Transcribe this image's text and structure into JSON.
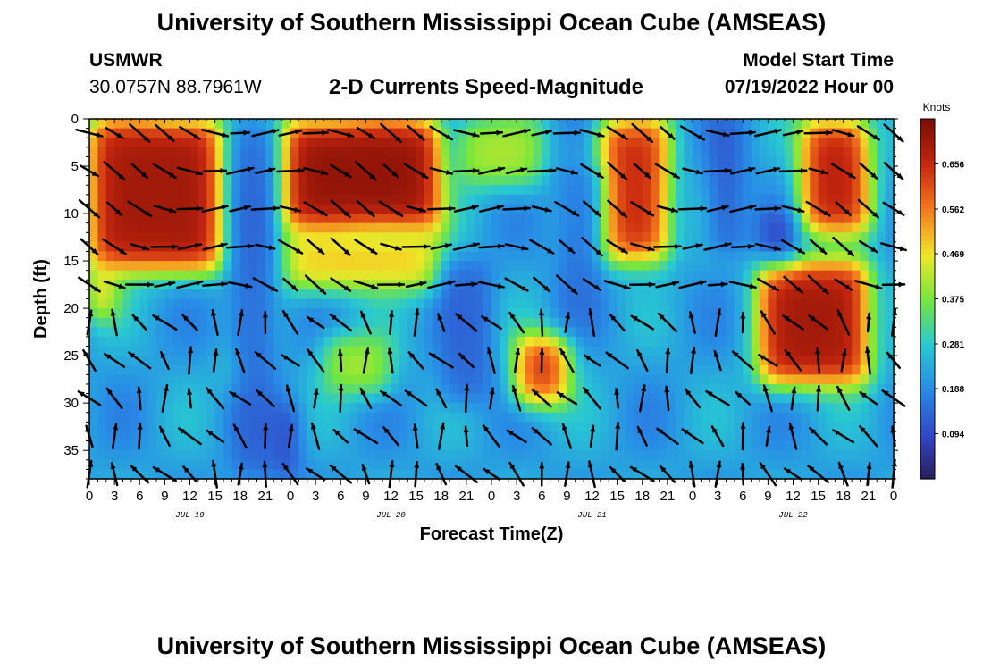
{
  "header": {
    "title": "University of Southern Mississippi Ocean Cube (AMSEAS)",
    "footer_title": "University of Southern Mississippi Ocean Cube (AMSEAS)",
    "station": "USMWR",
    "coordinates": "30.0757N  88.7961W",
    "subtitle": "2-D Currents Speed-Magnitude",
    "model_start_label": "Model Start Time",
    "model_start_value": "07/19/2022 Hour 00"
  },
  "chart_data": {
    "type": "heatmap",
    "title": "2-D Currents Speed-Magnitude",
    "xlabel": "Forecast Time(Z)",
    "ylabel": "Depth (ft)",
    "x_range_hours": [
      0,
      96
    ],
    "x_tick_step_hours": 3,
    "x_tick_labels": [
      "0",
      "3",
      "6",
      "9",
      "12",
      "15",
      "18",
      "21",
      "0",
      "3",
      "6",
      "9",
      "12",
      "15",
      "18",
      "21",
      "0",
      "3",
      "6",
      "9",
      "12",
      "15",
      "18",
      "21",
      "0",
      "3",
      "6",
      "9",
      "12",
      "15",
      "18",
      "21",
      "0"
    ],
    "day_labels": [
      {
        "label": "JUL 19",
        "hour": 12
      },
      {
        "label": "JUL 20",
        "hour": 36
      },
      {
        "label": "JUL 21",
        "hour": 60
      },
      {
        "label": "JUL 22",
        "hour": 84
      }
    ],
    "y_range_ft": [
      0,
      38
    ],
    "y_ticks": [
      0,
      5,
      10,
      15,
      20,
      25,
      30,
      35
    ],
    "colorbar": {
      "unit": "Knots",
      "min": 0.0,
      "max": 0.75,
      "ticks": [
        "0.094",
        "0.188",
        "0.281",
        "0.375",
        "0.469",
        "0.562",
        "0.656"
      ],
      "tick_values": [
        0.094,
        0.188,
        0.281,
        0.375,
        0.469,
        0.562,
        0.656
      ]
    },
    "high_speed_regions": [
      {
        "hours": [
          0,
          16
        ],
        "depth_ft": [
          0,
          16
        ],
        "speed": 0.7
      },
      {
        "hours": [
          0,
          3
        ],
        "depth_ft": [
          16,
          21
        ],
        "speed": 0.55
      },
      {
        "hours": [
          23,
          42
        ],
        "depth_ft": [
          0,
          12
        ],
        "speed": 0.72
      },
      {
        "hours": [
          23,
          42
        ],
        "depth_ft": [
          12,
          18
        ],
        "speed": 0.5
      },
      {
        "hours": [
          44,
          54
        ],
        "depth_ft": [
          0,
          7
        ],
        "speed": 0.42
      },
      {
        "hours": [
          61,
          69
        ],
        "depth_ft": [
          0,
          15
        ],
        "speed": 0.66
      },
      {
        "hours": [
          80,
          93
        ],
        "depth_ft": [
          15,
          28
        ],
        "speed": 0.7
      },
      {
        "hours": [
          85,
          93
        ],
        "depth_ft": [
          0,
          12
        ],
        "speed": 0.68
      },
      {
        "hours": [
          51,
          57
        ],
        "depth_ft": [
          23,
          30
        ],
        "speed": 0.66
      },
      {
        "hours": [
          28,
          36
        ],
        "depth_ft": [
          23,
          29
        ],
        "speed": 0.42
      },
      {
        "hours": [
          16,
          20
        ],
        "depth_ft": [
          24,
          29
        ],
        "speed": 0.33
      }
    ],
    "low_speed_regions": [
      {
        "hours": [
          17,
          22
        ],
        "depth_ft": [
          0,
          38
        ],
        "speed": 0.12
      },
      {
        "hours": [
          22,
          25
        ],
        "depth_ft": [
          30,
          38
        ],
        "speed": 0.06
      },
      {
        "hours": [
          42,
          48
        ],
        "depth_ft": [
          15,
          30
        ],
        "speed": 0.12
      },
      {
        "hours": [
          80,
          84
        ],
        "depth_ft": [
          10,
          15
        ],
        "speed": 0.05
      },
      {
        "hours": [
          74,
          78
        ],
        "depth_ft": [
          0,
          14
        ],
        "speed": 0.1
      },
      {
        "hours": [
          56,
          61
        ],
        "depth_ft": [
          5,
          22
        ],
        "speed": 0.14
      }
    ],
    "vector_grid": {
      "hours_step": 3,
      "depths_ft": [
        0,
        4,
        8,
        12,
        16,
        20,
        24,
        28,
        32,
        36
      ],
      "note": "direction arrows of the current vector at each grid node"
    }
  }
}
